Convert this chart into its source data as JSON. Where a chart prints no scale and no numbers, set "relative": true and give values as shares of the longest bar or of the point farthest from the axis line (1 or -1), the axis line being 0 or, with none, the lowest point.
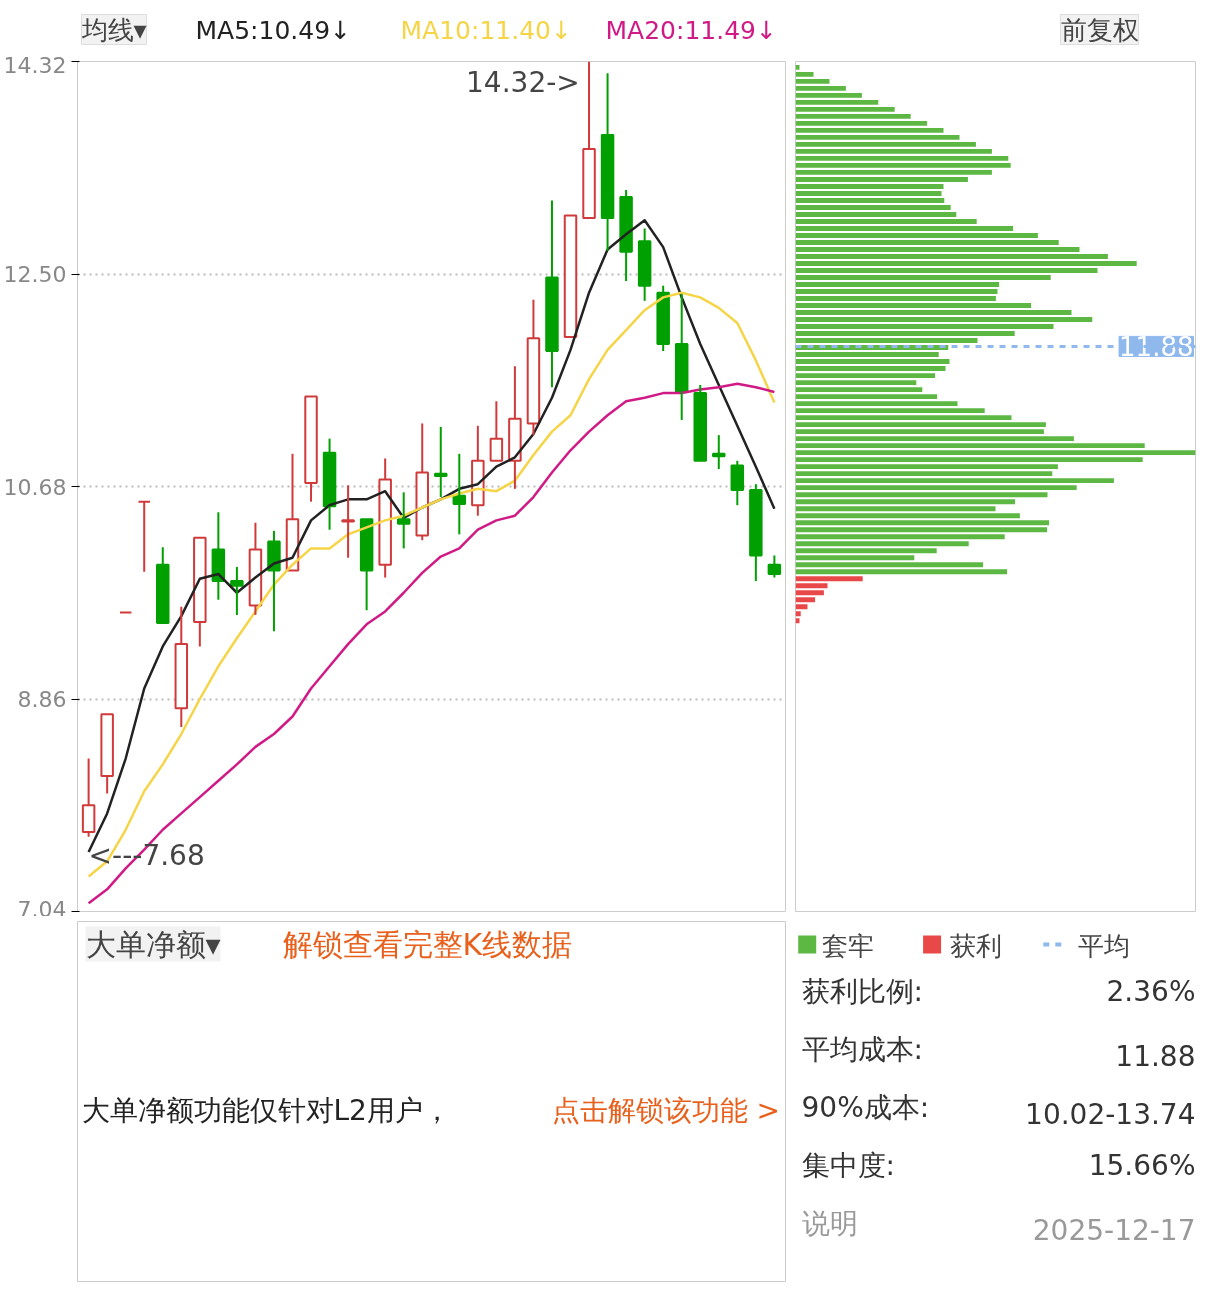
{
  "chart_data": [
    {
      "type": "candlestick",
      "legend_title": "均线▾",
      "categories": [
        null,
        null,
        null,
        null,
        null,
        null,
        null,
        null,
        null,
        null,
        null,
        null,
        null,
        null,
        null,
        null,
        null,
        null,
        null,
        null,
        null,
        null,
        null,
        null,
        null,
        null,
        null,
        null,
        null,
        null,
        null,
        null,
        null,
        null,
        null,
        null,
        null,
        null
      ],
      "ohlc": [
        [
          7.72,
          8.35,
          7.68,
          7.95
        ],
        [
          8.2,
          8.73,
          8.05,
          8.73
        ],
        [
          9.6,
          9.6,
          9.6,
          9.6
        ],
        [
          10.55,
          10.55,
          9.95,
          10.55
        ],
        [
          10.01,
          10.16,
          9.51,
          9.51
        ],
        [
          8.78,
          9.65,
          8.62,
          9.33
        ],
        [
          9.52,
          10.24,
          9.31,
          10.24
        ],
        [
          10.14,
          10.46,
          9.71,
          9.87
        ],
        [
          9.87,
          9.99,
          9.58,
          9.83
        ],
        [
          9.66,
          10.37,
          9.58,
          10.14
        ],
        [
          10.21,
          10.3,
          9.44,
          9.96
        ],
        [
          9.96,
          10.96,
          9.96,
          10.4
        ],
        [
          10.71,
          11.45,
          10.55,
          11.45
        ],
        [
          10.97,
          11.09,
          10.31,
          10.51
        ],
        [
          10.38,
          10.69,
          10.07,
          10.39
        ],
        [
          10.4,
          10.4,
          9.62,
          9.96
        ],
        [
          10.01,
          10.92,
          9.9,
          10.74
        ],
        [
          10.4,
          10.63,
          10.15,
          10.36
        ],
        [
          10.26,
          11.22,
          10.22,
          10.8
        ],
        [
          10.79,
          11.19,
          10.59,
          10.77
        ],
        [
          10.6,
          10.96,
          10.27,
          10.53
        ],
        [
          10.52,
          11.2,
          10.43,
          10.9
        ],
        [
          10.9,
          11.41,
          10.9,
          11.09
        ],
        [
          10.9,
          11.71,
          10.66,
          11.26
        ],
        [
          11.22,
          12.28,
          11.12,
          11.95
        ],
        [
          12.47,
          13.13,
          11.53,
          11.84
        ],
        [
          11.96,
          13.0,
          11.96,
          13.0
        ],
        [
          12.98,
          14.32,
          12.98,
          13.57
        ],
        [
          13.69,
          14.22,
          12.7,
          12.98
        ],
        [
          13.16,
          13.22,
          12.44,
          12.69
        ],
        [
          12.78,
          12.89,
          12.27,
          12.4
        ],
        [
          12.34,
          12.4,
          11.84,
          11.9
        ],
        [
          11.9,
          12.33,
          11.25,
          11.49
        ],
        [
          11.48,
          11.55,
          10.9,
          10.9
        ],
        [
          10.96,
          11.12,
          10.83,
          10.94
        ],
        [
          10.86,
          10.9,
          10.52,
          10.65
        ],
        [
          10.65,
          10.7,
          9.87,
          10.09
        ],
        [
          10.01,
          10.09,
          9.9,
          9.93
        ]
      ],
      "series": [
        {
          "name": "MA5:10.49↓",
          "type": "line",
          "color": "#222222",
          "values": [
            7.55,
            7.88,
            8.35,
            8.95,
            9.31,
            9.57,
            9.89,
            9.93,
            9.77,
            9.9,
            10.02,
            10.07,
            10.39,
            10.52,
            10.57,
            10.57,
            10.64,
            10.41,
            10.5,
            10.57,
            10.66,
            10.7,
            10.85,
            10.93,
            11.13,
            11.44,
            11.85,
            12.34,
            12.71,
            12.84,
            12.96,
            12.73,
            12.3,
            11.9,
            11.55,
            11.2,
            10.85,
            10.49
          ]
        },
        {
          "name": "MA10:11.40↓",
          "type": "line",
          "color": "#f5d547",
          "values": [
            7.34,
            7.47,
            7.74,
            8.07,
            8.3,
            8.56,
            8.86,
            9.14,
            9.38,
            9.61,
            9.84,
            10.01,
            10.15,
            10.15,
            10.27,
            10.33,
            10.39,
            10.43,
            10.5,
            10.57,
            10.62,
            10.66,
            10.64,
            10.73,
            10.95,
            11.15,
            11.29,
            11.6,
            11.85,
            12.02,
            12.19,
            12.3,
            12.34,
            12.3,
            12.21,
            12.08,
            11.76,
            11.4
          ]
        },
        {
          "name": "MA20:11.49↓",
          "type": "line",
          "color": "#d01a85",
          "values": [
            7.11,
            7.23,
            7.41,
            7.57,
            7.74,
            7.88,
            8.02,
            8.16,
            8.3,
            8.45,
            8.56,
            8.71,
            8.95,
            9.14,
            9.33,
            9.5,
            9.61,
            9.77,
            9.94,
            10.08,
            10.15,
            10.31,
            10.39,
            10.43,
            10.59,
            10.8,
            10.99,
            11.15,
            11.29,
            11.41,
            11.44,
            11.48,
            11.48,
            11.51,
            11.53,
            11.56,
            11.53,
            11.49
          ]
        }
      ],
      "ylim": [
        7.04,
        14.32
      ],
      "yticks": [
        7.04,
        8.86,
        {
          "value": 10.68,
          "label": "10.68"
        },
        {
          "value": 12.5,
          "label": "12.50"
        },
        14.32
      ],
      "grid": "y",
      "legend": "top",
      "annotations": [
        "14.32->",
        "<---7.68",
        "前复权"
      ]
    },
    {
      "type": "bar",
      "orientation": "horizontal",
      "relative": true,
      "ylim": [
        7.04,
        14.32
      ],
      "tick_labels": false,
      "legend": "bottom",
      "x": [
        14.27,
        14.21,
        14.15,
        14.09,
        14.03,
        13.97,
        13.91,
        13.85,
        13.79,
        13.73,
        13.67,
        13.61,
        13.55,
        13.49,
        13.43,
        13.37,
        13.31,
        13.25,
        13.19,
        13.13,
        13.07,
        13.01,
        12.95,
        12.89,
        12.83,
        12.77,
        12.71,
        12.65,
        12.59,
        12.53,
        12.47,
        12.41,
        12.35,
        12.29,
        12.23,
        12.17,
        12.11,
        12.05,
        11.99,
        11.93,
        11.87,
        11.81,
        11.75,
        11.69,
        11.63,
        11.57,
        11.51,
        11.45,
        11.39,
        11.33,
        11.27,
        11.21,
        11.15,
        11.09,
        11.03,
        10.97,
        10.91,
        10.85,
        10.79,
        10.73,
        10.67,
        10.61,
        10.55,
        10.49,
        10.43,
        10.37,
        10.31,
        10.25,
        10.19,
        10.13,
        10.07,
        10.01,
        9.95,
        9.89,
        9.83,
        9.77,
        9.71,
        9.65,
        9.59,
        9.53
      ],
      "series": [
        {
          "name": "套牢",
          "color": "#5cb843",
          "values": [
            0.01,
            0.045,
            0.085,
            0.126,
            0.166,
            0.207,
            0.248,
            0.288,
            0.329,
            0.37,
            0.41,
            0.451,
            0.491,
            0.532,
            0.538,
            0.491,
            0.431,
            0.37,
            0.365,
            0.372,
            0.388,
            0.402,
            0.453,
            0.544,
            0.606,
            0.658,
            0.71,
            0.781,
            0.853,
            0.755,
            0.638,
            0.509,
            0.505,
            0.501,
            0.589,
            0.69,
            0.742,
            0.645,
            0.548,
            0.455,
            0.382,
            0.358,
            0.385,
            0.375,
            0.349,
            0.302,
            0.317,
            0.354,
            0.405,
            0.473,
            0.54,
            0.626,
            0.621,
            0.696,
            0.873,
            1,
            0.868,
            0.656,
            0.642,
            0.796,
            0.703,
            0.63,
            0.549,
            0.5,
            0.561,
            0.634,
            0.629,
            0.523,
            0.433,
            0.353,
            0.297,
            0.469,
            0.529,
            null,
            null,
            null,
            null,
            null,
            null,
            null
          ]
        },
        {
          "name": "获利",
          "color": "#e84848",
          "values": [
            null,
            null,
            null,
            null,
            null,
            null,
            null,
            null,
            null,
            null,
            null,
            null,
            null,
            null,
            null,
            null,
            null,
            null,
            null,
            null,
            null,
            null,
            null,
            null,
            null,
            null,
            null,
            null,
            null,
            null,
            null,
            null,
            null,
            null,
            null,
            null,
            null,
            null,
            null,
            null,
            null,
            null,
            null,
            null,
            null,
            null,
            null,
            null,
            null,
            null,
            null,
            null,
            null,
            null,
            null,
            null,
            null,
            null,
            null,
            null,
            null,
            null,
            null,
            null,
            null,
            null,
            null,
            null,
            null,
            null,
            null,
            null,
            null,
            0.168,
            0.08,
            0.071,
            0.049,
            0.03,
            0.013,
            0.01
          ]
        }
      ],
      "annotations": [
        "平均"
      ],
      "ref_lines": [
        {
          "axis": "y",
          "value": 11.88,
          "label": "11.88",
          "color": "#8fb8ec",
          "line_style": "dashed"
        }
      ]
    },
    {
      "type": "other",
      "title": "大单净额▾",
      "subtitle": "解锁查看完整K线数据",
      "annotations": [
        "大单净额功能仅针对L2用户，",
        "点击解锁该功能 >"
      ]
    },
    {
      "type": "other",
      "annotations": [
        "获利比例:",
        "2.36%",
        "平均成本:",
        "11.88",
        "90%成本:",
        "10.02-13.74",
        "集中度:",
        "15.66%",
        "说明",
        "2025-12-17"
      ]
    }
  ]
}
